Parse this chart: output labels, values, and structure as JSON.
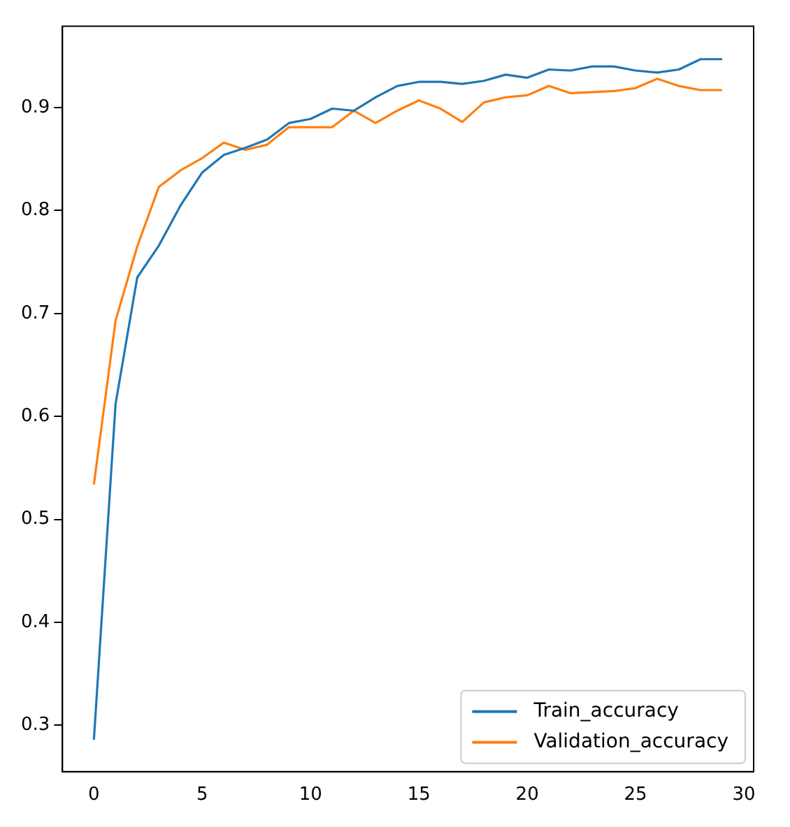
{
  "chart_data": {
    "type": "line",
    "x": [
      0,
      1,
      2,
      3,
      4,
      5,
      6,
      7,
      8,
      9,
      10,
      11,
      12,
      13,
      14,
      15,
      16,
      17,
      18,
      19,
      20,
      21,
      22,
      23,
      24,
      25,
      26,
      27,
      28,
      29
    ],
    "series": [
      {
        "name": "Train_accuracy",
        "color": "#1f77b4",
        "values": [
          0.286,
          0.612,
          0.735,
          0.766,
          0.805,
          0.837,
          0.854,
          0.861,
          0.869,
          0.885,
          0.889,
          0.899,
          0.897,
          0.91,
          0.921,
          0.925,
          0.925,
          0.923,
          0.926,
          0.932,
          0.929,
          0.937,
          0.936,
          0.94,
          0.94,
          0.936,
          0.934,
          0.937,
          0.947,
          0.947
        ]
      },
      {
        "name": "Validation_accuracy",
        "color": "#ff7f0e",
        "values": [
          0.534,
          0.693,
          0.765,
          0.823,
          0.839,
          0.851,
          0.866,
          0.859,
          0.864,
          0.881,
          0.881,
          0.881,
          0.897,
          0.885,
          0.897,
          0.907,
          0.899,
          0.886,
          0.905,
          0.91,
          0.912,
          0.921,
          0.914,
          0.915,
          0.916,
          0.919,
          0.928,
          0.921,
          0.917,
          0.917
        ]
      }
    ],
    "xlim": [
      -1.45,
      30.45
    ],
    "xticks": [
      0,
      5,
      10,
      15,
      20,
      25,
      30
    ],
    "ylim": [
      0.255,
      0.979
    ],
    "yticks": [
      0.3,
      0.4,
      0.5,
      0.6,
      0.7,
      0.8,
      0.9
    ],
    "grid": false,
    "legend": "bottom right",
    "marker": "none",
    "line_style": "solid"
  }
}
